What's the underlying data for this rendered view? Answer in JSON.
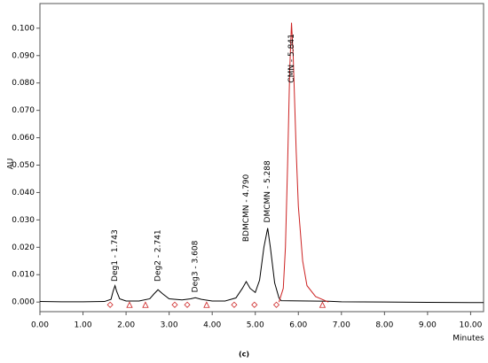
{
  "chart_data": {
    "type": "line",
    "x_label": "Minutes",
    "y_label": "AU",
    "caption": "(c)",
    "xlim": [
      0,
      10.3
    ],
    "ylim": [
      -0.0035,
      0.109
    ],
    "xticks": [
      {
        "value": 0,
        "label": "0.00"
      },
      {
        "value": 1,
        "label": "1.00"
      },
      {
        "value": 2,
        "label": "2.00"
      },
      {
        "value": 3,
        "label": "3.00"
      },
      {
        "value": 4,
        "label": "4.00"
      },
      {
        "value": 5,
        "label": "5.00"
      },
      {
        "value": 6,
        "label": "6.00"
      },
      {
        "value": 7,
        "label": "7.00"
      },
      {
        "value": 8,
        "label": "8.00"
      },
      {
        "value": 9,
        "label": "9.00"
      },
      {
        "value": 10,
        "label": "10.00"
      }
    ],
    "yticks": [
      {
        "value": 0,
        "label": "0.000"
      },
      {
        "value": 0.01,
        "label": "0.010"
      },
      {
        "value": 0.02,
        "label": "0.020"
      },
      {
        "value": 0.03,
        "label": "0.030"
      },
      {
        "value": 0.04,
        "label": "0.040"
      },
      {
        "value": 0.05,
        "label": "0.050"
      },
      {
        "value": 0.06,
        "label": "0.060"
      },
      {
        "value": 0.07,
        "label": "0.070"
      },
      {
        "value": 0.08,
        "label": "0.080"
      },
      {
        "value": 0.09,
        "label": "0.090"
      },
      {
        "value": 0.1,
        "label": "0.100"
      }
    ],
    "series": [
      {
        "color": "#000000",
        "x": [
          0,
          0.5,
          1.0,
          1.5,
          1.65,
          1.7,
          1.743,
          1.78,
          1.85,
          2.0,
          2.3,
          2.55,
          2.65,
          2.741,
          2.85,
          3.0,
          3.3,
          3.5,
          3.608,
          3.75,
          4.0,
          4.3,
          4.55,
          4.7,
          4.79,
          4.88,
          5.0,
          5.1,
          5.2,
          5.288,
          5.35,
          5.45,
          5.55,
          5.6,
          6.7,
          7.0,
          8.0,
          9.0,
          10.0,
          10.3
        ],
        "values": [
          0.0002,
          0.0001,
          0.0001,
          0.0002,
          0.001,
          0.004,
          0.006,
          0.004,
          0.0012,
          0.0004,
          0.0004,
          0.0012,
          0.003,
          0.0045,
          0.003,
          0.0012,
          0.0008,
          0.0012,
          0.0016,
          0.001,
          0.0004,
          0.0004,
          0.0015,
          0.005,
          0.0075,
          0.005,
          0.0035,
          0.008,
          0.02,
          0.027,
          0.02,
          0.007,
          0.0015,
          0.0005,
          0.0003,
          0.0001,
          0.0,
          -0.0001,
          -0.0002,
          -0.0002
        ]
      },
      {
        "color": "#cc2222",
        "x": [
          5.55,
          5.65,
          5.7,
          5.75,
          5.8,
          5.841,
          5.88,
          5.95,
          6.0,
          6.1,
          6.2,
          6.4,
          6.7
        ],
        "values": [
          0.0,
          0.005,
          0.02,
          0.05,
          0.085,
          0.102,
          0.09,
          0.055,
          0.035,
          0.015,
          0.006,
          0.002,
          0.0
        ]
      }
    ],
    "markers": [
      {
        "shape": "diamond",
        "color": "#cc2222",
        "x": [
          1.63,
          3.13,
          3.42,
          4.51,
          4.98,
          5.49
        ],
        "values": [
          -0.001,
          -0.001,
          -0.001,
          -0.001,
          -0.001,
          -0.001
        ]
      },
      {
        "shape": "triangle",
        "color": "#cc2222",
        "x": [
          2.08,
          2.45,
          3.87,
          6.56
        ],
        "values": [
          -0.001,
          -0.001,
          -0.001,
          -0.001
        ]
      }
    ],
    "annotations": [
      {
        "text": "Deg1 - 1.743",
        "x": 1.743,
        "y": 0.0075
      },
      {
        "text": "Deg2 - 2.741",
        "x": 2.741,
        "y": 0.0075
      },
      {
        "text": "Deg3 - 3.608",
        "x": 3.608,
        "y": 0.0035
      },
      {
        "text": "BDMCMN - 4.790",
        "x": 4.79,
        "y": 0.022
      },
      {
        "text": "DMCMN - 5.288",
        "x": 5.288,
        "y": 0.029
      },
      {
        "text": "CMN - 5.841",
        "x": 5.841,
        "y": 0.08
      }
    ]
  }
}
